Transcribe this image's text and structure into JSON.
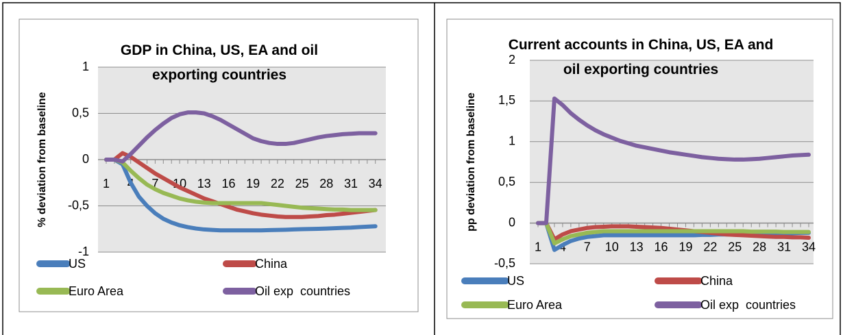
{
  "chart_data": [
    {
      "type": "line",
      "title": "GDP in China, US, EA and oil exporting countries",
      "y_label": "% deviation from baseline",
      "categories": [
        "1",
        null,
        null,
        "4",
        null,
        null,
        "7",
        null,
        null,
        "10",
        null,
        null,
        "13",
        null,
        null,
        "16",
        null,
        null,
        "19",
        null,
        null,
        "22",
        null,
        null,
        "25",
        null,
        null,
        "28",
        null,
        null,
        "31",
        null,
        null,
        "34"
      ],
      "ylim": [
        -1,
        1
      ],
      "yticks": [
        1,
        {
          "value": 0.5,
          "label": "0,5"
        },
        0,
        {
          "value": -0.5,
          "label": "-0,5"
        },
        -1
      ],
      "grid": true,
      "legend": "bottom",
      "series": [
        {
          "name": "US",
          "color": "#4a7ebb",
          "values": [
            0,
            0,
            -0.05,
            -0.25,
            -0.4,
            -0.5,
            -0.58,
            -0.64,
            -0.68,
            -0.71,
            -0.73,
            -0.745,
            -0.755,
            -0.76,
            -0.765,
            -0.765,
            -0.765,
            -0.765,
            -0.765,
            -0.765,
            -0.762,
            -0.76,
            -0.758,
            -0.755,
            -0.752,
            -0.75,
            -0.748,
            -0.745,
            -0.742,
            -0.738,
            -0.735,
            -0.73,
            -0.725,
            -0.72
          ]
        },
        {
          "name": "China",
          "color": "#be4b48",
          "values": [
            0,
            0,
            0.07,
            0.03,
            -0.03,
            -0.09,
            -0.15,
            -0.2,
            -0.25,
            -0.3,
            -0.34,
            -0.38,
            -0.42,
            -0.45,
            -0.48,
            -0.51,
            -0.54,
            -0.56,
            -0.58,
            -0.595,
            -0.605,
            -0.615,
            -0.62,
            -0.62,
            -0.62,
            -0.615,
            -0.61,
            -0.6,
            -0.595,
            -0.585,
            -0.575,
            -0.565,
            -0.555,
            -0.545
          ]
        },
        {
          "name": "Euro Area",
          "color": "#98b954",
          "values": [
            0,
            0,
            -0.03,
            -0.12,
            -0.2,
            -0.27,
            -0.32,
            -0.36,
            -0.39,
            -0.42,
            -0.44,
            -0.455,
            -0.465,
            -0.47,
            -0.47,
            -0.47,
            -0.47,
            -0.47,
            -0.47,
            -0.47,
            -0.48,
            -0.49,
            -0.5,
            -0.51,
            -0.52,
            -0.525,
            -0.53,
            -0.535,
            -0.54,
            -0.54,
            -0.545,
            -0.545,
            -0.545,
            -0.545
          ]
        },
        {
          "name": "Oil exp  countries",
          "color": "#7d60a0",
          "values": [
            0,
            0,
            -0.02,
            0.06,
            0.15,
            0.24,
            0.32,
            0.39,
            0.45,
            0.49,
            0.51,
            0.51,
            0.5,
            0.47,
            0.43,
            0.38,
            0.33,
            0.28,
            0.23,
            0.2,
            0.18,
            0.17,
            0.17,
            0.18,
            0.2,
            0.22,
            0.24,
            0.255,
            0.265,
            0.275,
            0.28,
            0.285,
            0.285,
            0.285
          ]
        }
      ]
    },
    {
      "type": "line",
      "title": "Current accounts in China, US, EA and oil exporting countries",
      "y_label": "pp  deviation from baseline",
      "categories": [
        "1",
        null,
        null,
        "4",
        null,
        null,
        "7",
        null,
        null,
        "10",
        null,
        null,
        "13",
        null,
        null,
        "16",
        null,
        null,
        "19",
        null,
        null,
        "22",
        null,
        null,
        "25",
        null,
        null,
        "28",
        null,
        null,
        "31",
        null,
        null,
        "34"
      ],
      "ylim": [
        -0.5,
        2
      ],
      "yticks": [
        2,
        {
          "value": 1.5,
          "label": "1,5"
        },
        1,
        {
          "value": 0.5,
          "label": "0,5"
        },
        0,
        {
          "value": -0.5,
          "label": "-0,5"
        }
      ],
      "grid": true,
      "legend": "bottom",
      "series": [
        {
          "name": "US",
          "color": "#4a7ebb",
          "values": [
            0,
            0,
            -0.33,
            -0.27,
            -0.22,
            -0.19,
            -0.17,
            -0.16,
            -0.15,
            -0.15,
            -0.15,
            -0.15,
            -0.15,
            -0.15,
            -0.15,
            -0.15,
            -0.15,
            -0.15,
            -0.15,
            -0.15,
            -0.145,
            -0.145,
            -0.14,
            -0.14,
            -0.14,
            -0.135,
            -0.135,
            -0.13,
            -0.13,
            -0.13,
            -0.125,
            -0.125,
            -0.12,
            -0.12
          ]
        },
        {
          "name": "China",
          "color": "#be4b48",
          "values": [
            0,
            0,
            -0.2,
            -0.14,
            -0.1,
            -0.08,
            -0.06,
            -0.05,
            -0.045,
            -0.04,
            -0.04,
            -0.04,
            -0.045,
            -0.05,
            -0.055,
            -0.06,
            -0.07,
            -0.08,
            -0.09,
            -0.1,
            -0.11,
            -0.12,
            -0.13,
            -0.14,
            -0.145,
            -0.15,
            -0.155,
            -0.16,
            -0.165,
            -0.17,
            -0.17,
            -0.175,
            -0.175,
            -0.18
          ]
        },
        {
          "name": "Euro Area",
          "color": "#98b954",
          "values": [
            0,
            0,
            -0.25,
            -0.2,
            -0.16,
            -0.14,
            -0.12,
            -0.11,
            -0.1,
            -0.1,
            -0.1,
            -0.1,
            -0.1,
            -0.1,
            -0.1,
            -0.1,
            -0.1,
            -0.1,
            -0.1,
            -0.1,
            -0.1,
            -0.1,
            -0.1,
            -0.1,
            -0.1,
            -0.1,
            -0.105,
            -0.105,
            -0.105,
            -0.105,
            -0.11,
            -0.11,
            -0.11,
            -0.11
          ]
        },
        {
          "name": "Oil exp  countries",
          "color": "#7d60a0",
          "values": [
            0,
            0,
            1.53,
            1.45,
            1.35,
            1.27,
            1.2,
            1.14,
            1.09,
            1.05,
            1.01,
            0.98,
            0.95,
            0.93,
            0.91,
            0.89,
            0.87,
            0.855,
            0.84,
            0.825,
            0.81,
            0.8,
            0.79,
            0.785,
            0.78,
            0.78,
            0.785,
            0.79,
            0.8,
            0.81,
            0.82,
            0.83,
            0.835,
            0.84
          ]
        }
      ]
    }
  ]
}
